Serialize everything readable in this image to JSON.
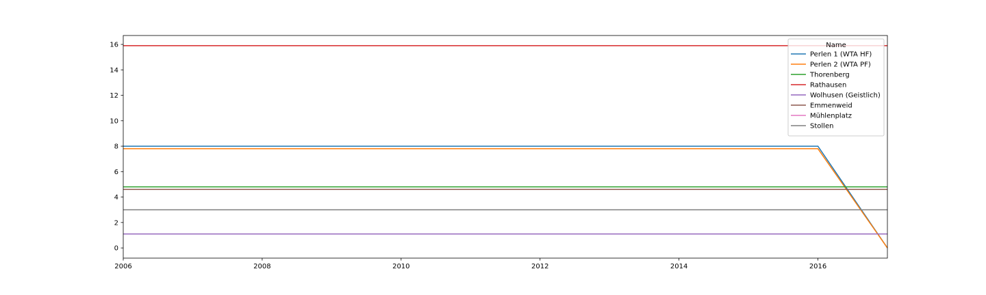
{
  "chart_data": {
    "type": "line",
    "title": "",
    "xlabel": "",
    "ylabel": "",
    "xlim": [
      2006,
      2017
    ],
    "ylim": [
      -0.8,
      16.7
    ],
    "xticks": [
      2006,
      2008,
      2010,
      2012,
      2014,
      2016
    ],
    "yticks": [
      0,
      2,
      4,
      6,
      8,
      10,
      12,
      14,
      16
    ],
    "grid": false,
    "legend": {
      "title": "Name",
      "placement": "top-right"
    },
    "x": [
      2006,
      2007,
      2008,
      2009,
      2010,
      2011,
      2012,
      2013,
      2014,
      2015,
      2016,
      2017
    ],
    "series": [
      {
        "name": "Perlen 1 (WTA HF)",
        "color": "#1f77b4",
        "values": [
          8.0,
          8.0,
          8.0,
          8.0,
          8.0,
          8.0,
          8.0,
          8.0,
          8.0,
          8.0,
          8.0,
          0.0
        ]
      },
      {
        "name": "Perlen 2 (WTA PF)",
        "color": "#ff7f0e",
        "values": [
          7.8,
          7.8,
          7.8,
          7.8,
          7.8,
          7.8,
          7.8,
          7.8,
          7.8,
          7.8,
          7.8,
          0.0
        ]
      },
      {
        "name": "Thorenberg",
        "color": "#2ca02c",
        "values": [
          4.8,
          4.8,
          4.8,
          4.8,
          4.8,
          4.8,
          4.8,
          4.8,
          4.8,
          4.8,
          4.8,
          4.8
        ]
      },
      {
        "name": "Rathausen",
        "color": "#d62728",
        "values": [
          15.9,
          15.9,
          15.9,
          15.9,
          15.9,
          15.9,
          15.9,
          15.9,
          15.9,
          15.9,
          15.9,
          15.9
        ]
      },
      {
        "name": "Wolhusen (Geistlich)",
        "color": "#9467bd",
        "values": [
          1.1,
          1.1,
          1.1,
          1.1,
          1.1,
          1.1,
          1.1,
          1.1,
          1.1,
          1.1,
          1.1,
          1.1
        ]
      },
      {
        "name": "Emmenweid",
        "color": "#8c564b",
        "values": [
          4.6,
          4.6,
          4.6,
          4.6,
          4.6,
          4.6,
          4.6,
          4.6,
          4.6,
          4.6,
          4.6,
          4.6
        ]
      },
      {
        "name": "Mühlenplatz",
        "color": "#e377c2",
        "values": [
          3.0,
          3.0,
          3.0,
          3.0,
          3.0,
          3.0,
          3.0,
          3.0,
          3.0,
          3.0,
          3.0,
          3.0
        ]
      },
      {
        "name": "Stollen",
        "color": "#7f7f7f",
        "values": [
          3.0,
          3.0,
          3.0,
          3.0,
          3.0,
          3.0,
          3.0,
          3.0,
          3.0,
          3.0,
          3.0,
          3.0
        ]
      }
    ]
  }
}
